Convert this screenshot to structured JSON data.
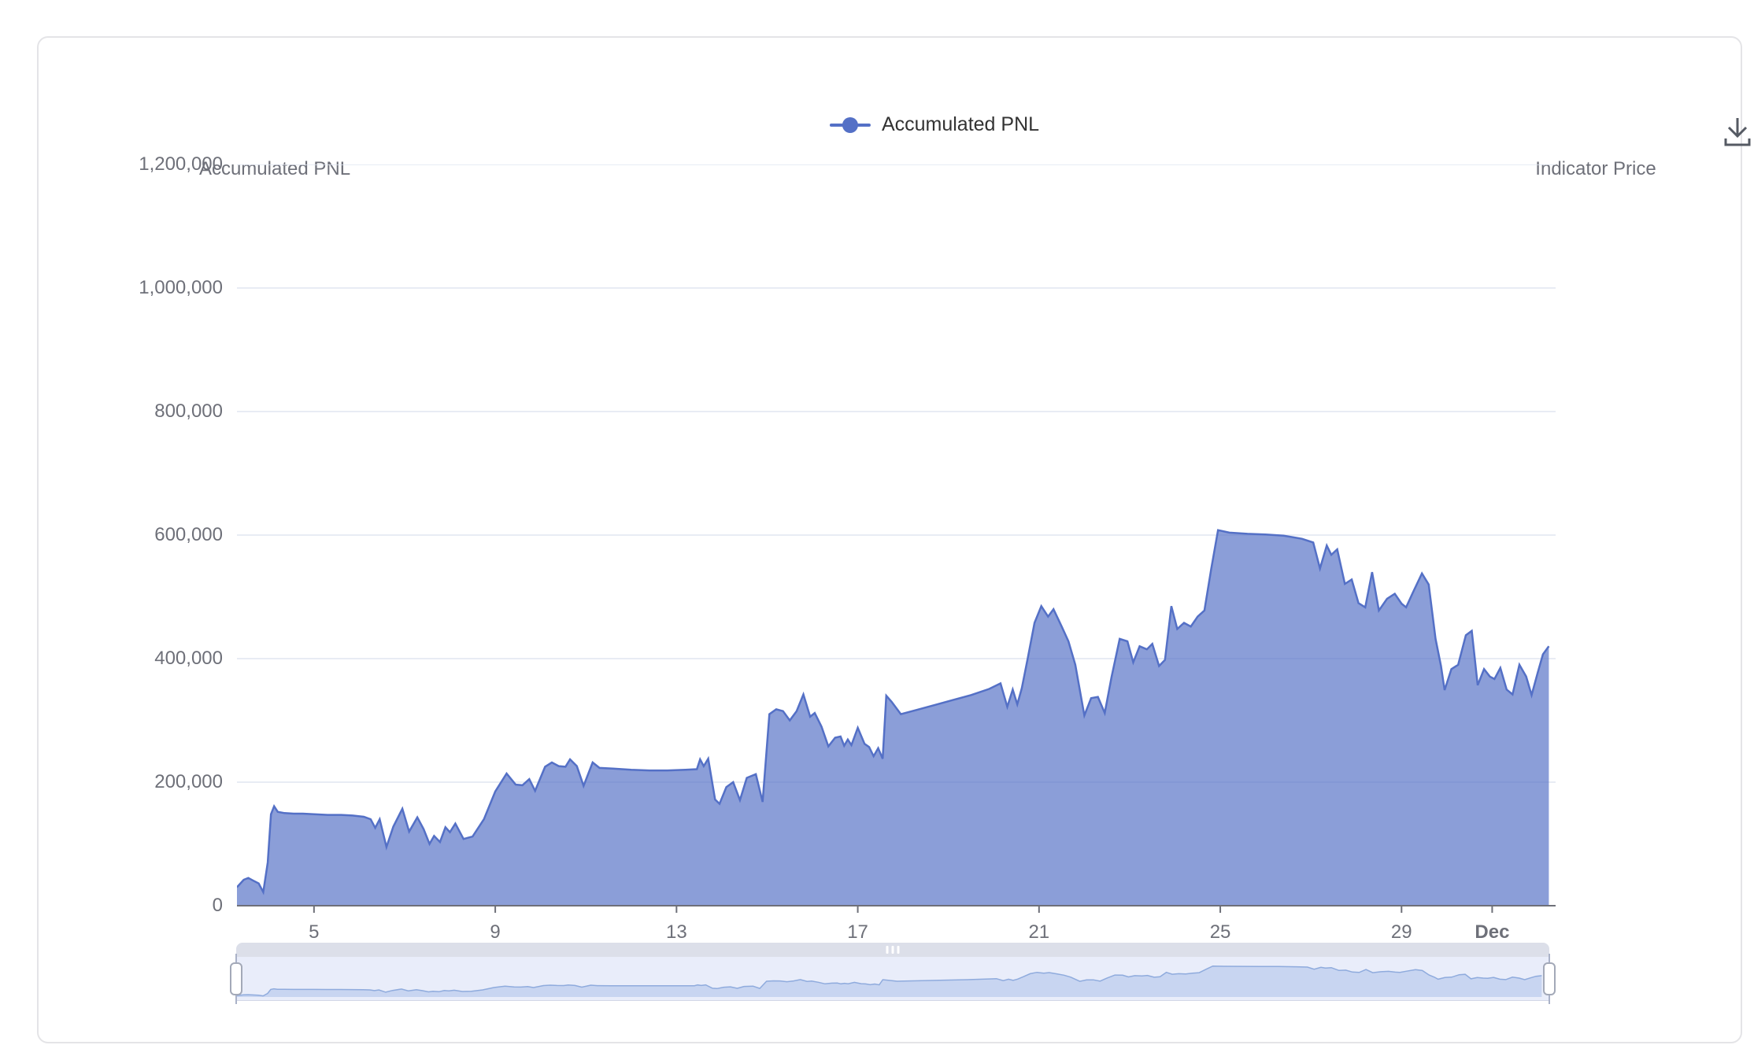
{
  "legend": {
    "label": "Accumulated PNL"
  },
  "toolbar": {
    "download_icon": "save-as-image"
  },
  "axes": {
    "left_title": "Accumulated PNL",
    "right_title": "Indicator Price"
  },
  "colors": {
    "series": "#5470C6",
    "series_area_opacity": 0.68,
    "grid_line": "#E0E6F1",
    "axis_line": "#6E7079",
    "label": "#6E7079",
    "legend_text": "#333333",
    "slider_strip": "#dcdfe9",
    "slider_body": "#e9edfa",
    "slider_mini_line": "#8fabdd",
    "slider_mini_fill": "rgba(125,158,222,0.30)"
  },
  "chart_data": {
    "type": "area",
    "title": "",
    "xlabel": "",
    "ylabel": "Accumulated PNL",
    "legend_position": "top-center",
    "grid": true,
    "x": {
      "unit": "day (Nov 3 - Dec 2)",
      "range": [
        3.3,
        32.4
      ],
      "ticks": [
        {
          "v": 5,
          "label": "5"
        },
        {
          "v": 9,
          "label": "9"
        },
        {
          "v": 13,
          "label": "13"
        },
        {
          "v": 17,
          "label": "17"
        },
        {
          "v": 21,
          "label": "21"
        },
        {
          "v": 25,
          "label": "25"
        },
        {
          "v": 29,
          "label": "29"
        },
        {
          "v": 31,
          "label": "Dec",
          "bold": true
        }
      ]
    },
    "y": {
      "range": [
        0,
        1200000
      ],
      "tick_step": 200000,
      "ticks": [
        {
          "v": 0,
          "label": "0"
        },
        {
          "v": 200000,
          "label": "200,000"
        },
        {
          "v": 400000,
          "label": "400,000"
        },
        {
          "v": 600000,
          "label": "600,000"
        },
        {
          "v": 800000,
          "label": "800,000"
        },
        {
          "v": 1000000,
          "label": "1,000,000"
        },
        {
          "v": 1200000,
          "label": "1,200,000"
        }
      ]
    },
    "series": [
      {
        "name": "Accumulated PNL",
        "color": "#5470C6",
        "points": [
          [
            3.3,
            30000
          ],
          [
            3.45,
            42000
          ],
          [
            3.55,
            45000
          ],
          [
            3.65,
            41000
          ],
          [
            3.78,
            36000
          ],
          [
            3.88,
            22000
          ],
          [
            3.98,
            70000
          ],
          [
            4.05,
            148000
          ],
          [
            4.12,
            161000
          ],
          [
            4.2,
            152000
          ],
          [
            4.35,
            150000
          ],
          [
            4.55,
            149000
          ],
          [
            4.75,
            149000
          ],
          [
            5.0,
            148000
          ],
          [
            5.3,
            147000
          ],
          [
            5.6,
            147000
          ],
          [
            5.85,
            146000
          ],
          [
            6.1,
            144000
          ],
          [
            6.25,
            140000
          ],
          [
            6.35,
            126000
          ],
          [
            6.45,
            140000
          ],
          [
            6.6,
            95000
          ],
          [
            6.75,
            128000
          ],
          [
            6.95,
            157000
          ],
          [
            7.1,
            120000
          ],
          [
            7.28,
            143000
          ],
          [
            7.42,
            124000
          ],
          [
            7.55,
            100000
          ],
          [
            7.65,
            113000
          ],
          [
            7.78,
            103000
          ],
          [
            7.9,
            127000
          ],
          [
            8.0,
            119000
          ],
          [
            8.12,
            133000
          ],
          [
            8.3,
            108000
          ],
          [
            8.5,
            112000
          ],
          [
            8.75,
            140000
          ],
          [
            9.0,
            185000
          ],
          [
            9.25,
            214000
          ],
          [
            9.45,
            196000
          ],
          [
            9.6,
            195000
          ],
          [
            9.75,
            205000
          ],
          [
            9.88,
            186000
          ],
          [
            10.1,
            225000
          ],
          [
            10.25,
            232000
          ],
          [
            10.4,
            226000
          ],
          [
            10.55,
            225000
          ],
          [
            10.65,
            237000
          ],
          [
            10.8,
            226000
          ],
          [
            10.95,
            194000
          ],
          [
            11.15,
            232000
          ],
          [
            11.3,
            223000
          ],
          [
            11.6,
            222000
          ],
          [
            12.0,
            220000
          ],
          [
            12.4,
            219000
          ],
          [
            12.8,
            219000
          ],
          [
            13.2,
            220000
          ],
          [
            13.45,
            221000
          ],
          [
            13.52,
            237000
          ],
          [
            13.6,
            226000
          ],
          [
            13.7,
            238000
          ],
          [
            13.85,
            172000
          ],
          [
            13.95,
            165000
          ],
          [
            14.1,
            192000
          ],
          [
            14.25,
            200000
          ],
          [
            14.4,
            171000
          ],
          [
            14.55,
            207000
          ],
          [
            14.75,
            213000
          ],
          [
            14.9,
            168000
          ],
          [
            15.05,
            310000
          ],
          [
            15.2,
            318000
          ],
          [
            15.35,
            315000
          ],
          [
            15.5,
            300000
          ],
          [
            15.65,
            315000
          ],
          [
            15.8,
            342000
          ],
          [
            15.95,
            306000
          ],
          [
            16.05,
            312000
          ],
          [
            16.2,
            290000
          ],
          [
            16.35,
            258000
          ],
          [
            16.5,
            272000
          ],
          [
            16.62,
            274000
          ],
          [
            16.7,
            259000
          ],
          [
            16.78,
            269000
          ],
          [
            16.86,
            260000
          ],
          [
            17.0,
            288000
          ],
          [
            17.15,
            262000
          ],
          [
            17.25,
            257000
          ],
          [
            17.35,
            242000
          ],
          [
            17.45,
            255000
          ],
          [
            17.55,
            238000
          ],
          [
            17.63,
            340000
          ],
          [
            17.75,
            330000
          ],
          [
            17.95,
            310000
          ],
          [
            18.3,
            317000
          ],
          [
            18.7,
            325000
          ],
          [
            19.1,
            333000
          ],
          [
            19.5,
            341000
          ],
          [
            19.9,
            351000
          ],
          [
            20.15,
            360000
          ],
          [
            20.3,
            322000
          ],
          [
            20.42,
            350000
          ],
          [
            20.52,
            326000
          ],
          [
            20.62,
            352000
          ],
          [
            20.75,
            400000
          ],
          [
            20.9,
            458000
          ],
          [
            21.05,
            485000
          ],
          [
            21.2,
            468000
          ],
          [
            21.32,
            480000
          ],
          [
            21.5,
            452000
          ],
          [
            21.65,
            428000
          ],
          [
            21.8,
            390000
          ],
          [
            22.0,
            308000
          ],
          [
            22.15,
            336000
          ],
          [
            22.3,
            338000
          ],
          [
            22.45,
            312000
          ],
          [
            22.6,
            370000
          ],
          [
            22.78,
            432000
          ],
          [
            22.95,
            428000
          ],
          [
            23.08,
            394000
          ],
          [
            23.22,
            420000
          ],
          [
            23.38,
            415000
          ],
          [
            23.5,
            424000
          ],
          [
            23.65,
            388000
          ],
          [
            23.78,
            398000
          ],
          [
            23.92,
            485000
          ],
          [
            24.05,
            448000
          ],
          [
            24.2,
            458000
          ],
          [
            24.35,
            452000
          ],
          [
            24.5,
            468000
          ],
          [
            24.65,
            478000
          ],
          [
            24.8,
            545000
          ],
          [
            24.95,
            608000
          ],
          [
            25.2,
            604000
          ],
          [
            25.6,
            602000
          ],
          [
            26.0,
            601000
          ],
          [
            26.4,
            599000
          ],
          [
            26.8,
            594000
          ],
          [
            27.05,
            588000
          ],
          [
            27.2,
            546000
          ],
          [
            27.35,
            583000
          ],
          [
            27.45,
            568000
          ],
          [
            27.58,
            577000
          ],
          [
            27.75,
            521000
          ],
          [
            27.9,
            528000
          ],
          [
            28.05,
            490000
          ],
          [
            28.2,
            483000
          ],
          [
            28.35,
            540000
          ],
          [
            28.5,
            478000
          ],
          [
            28.68,
            497000
          ],
          [
            28.85,
            505000
          ],
          [
            29.0,
            489000
          ],
          [
            29.1,
            483000
          ],
          [
            29.25,
            507000
          ],
          [
            29.45,
            538000
          ],
          [
            29.6,
            520000
          ],
          [
            29.75,
            432000
          ],
          [
            29.87,
            388000
          ],
          [
            29.95,
            349000
          ],
          [
            30.1,
            383000
          ],
          [
            30.25,
            390000
          ],
          [
            30.42,
            438000
          ],
          [
            30.55,
            445000
          ],
          [
            30.68,
            357000
          ],
          [
            30.82,
            383000
          ],
          [
            30.95,
            371000
          ],
          [
            31.05,
            367000
          ],
          [
            31.18,
            385000
          ],
          [
            31.32,
            350000
          ],
          [
            31.45,
            342000
          ],
          [
            31.6,
            390000
          ],
          [
            31.75,
            371000
          ],
          [
            31.87,
            341000
          ],
          [
            32.0,
            376000
          ],
          [
            32.12,
            407000
          ],
          [
            32.25,
            420000
          ]
        ]
      }
    ]
  },
  "slider": {
    "full_range_selected": true
  }
}
